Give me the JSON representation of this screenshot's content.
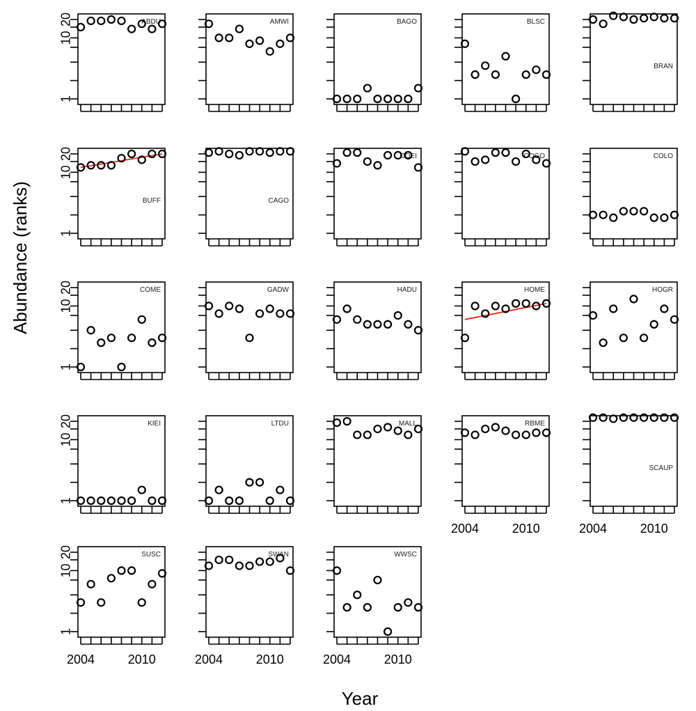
{
  "chart_data": {
    "type": "scatter",
    "xlabel": "Year",
    "ylabel": "Abundance (ranks)",
    "x": [
      2004,
      2005,
      2006,
      2007,
      2008,
      2009,
      2010,
      2011,
      2012
    ],
    "x_ticks": [
      2004,
      2010
    ],
    "y_ticks": [
      1,
      10,
      20
    ],
    "y_scale": "log",
    "xlim": [
      2004,
      2012
    ],
    "ylim": [
      1,
      25
    ],
    "grid": false,
    "legend": "none",
    "trend_color": "#e8291c",
    "panels": [
      {
        "name": "ABDU",
        "values": [
          15,
          19,
          19,
          20,
          19,
          14,
          17,
          14,
          17
        ]
      },
      {
        "name": "AMWI",
        "values": [
          17,
          10,
          10,
          14,
          8,
          9,
          6,
          8,
          10
        ]
      },
      {
        "name": "BAGO",
        "values": [
          1,
          1,
          1,
          1.5,
          1,
          1,
          1,
          1,
          1.5
        ]
      },
      {
        "name": "BLSC",
        "values": [
          8,
          2.5,
          3.5,
          2.5,
          5,
          1,
          2.5,
          3,
          2.5
        ]
      },
      {
        "name": "BRAN",
        "values": [
          20,
          17,
          23,
          22,
          20,
          21,
          22,
          21,
          21
        ]
      },
      {
        "name": "BUFF",
        "values": [
          12,
          13,
          13,
          13,
          17,
          20,
          16,
          20,
          20
        ],
        "trend": [
          12,
          20
        ]
      },
      {
        "name": "CAGO",
        "values": [
          21,
          22,
          20,
          19,
          22,
          22,
          21,
          22,
          22
        ]
      },
      {
        "name": "COEI",
        "values": [
          14,
          21,
          21,
          15,
          13,
          19,
          19,
          19,
          12
        ]
      },
      {
        "name": "COGO",
        "values": [
          22,
          15,
          16,
          21,
          21,
          15,
          20,
          16,
          14
        ]
      },
      {
        "name": "COLO",
        "values": [
          2,
          2,
          1.8,
          2.3,
          2.3,
          2.3,
          1.8,
          1.8,
          2
        ]
      },
      {
        "name": "COME",
        "values": [
          1,
          4,
          2.5,
          3,
          1,
          3,
          6,
          2.5,
          3
        ]
      },
      {
        "name": "GADW",
        "values": [
          10,
          7.5,
          10,
          9,
          3,
          7.5,
          9,
          7.5,
          7.5
        ]
      },
      {
        "name": "HADU",
        "values": [
          6,
          9,
          6,
          5,
          5,
          5,
          7,
          5,
          4
        ]
      },
      {
        "name": "HOME",
        "values": [
          3,
          10,
          7.5,
          10,
          9,
          11,
          11,
          10,
          11
        ],
        "trend": [
          6,
          11
        ]
      },
      {
        "name": "HOGR",
        "values": [
          7,
          2.5,
          9,
          3,
          13,
          3,
          5,
          9,
          6
        ]
      },
      {
        "name": "KIEI",
        "values": [
          1,
          1,
          1,
          1,
          1,
          1,
          1.5,
          1,
          1
        ]
      },
      {
        "name": "LTDU",
        "values": [
          1,
          1.5,
          1,
          1,
          2,
          2,
          1,
          1.5,
          1
        ]
      },
      {
        "name": "MALL",
        "values": [
          19,
          20,
          12,
          12,
          15,
          16,
          14,
          12,
          15
        ]
      },
      {
        "name": "RBME",
        "values": [
          13,
          12,
          15,
          16,
          14,
          12,
          12,
          13,
          13
        ]
      },
      {
        "name": "SCAUP",
        "values": [
          23,
          23,
          22,
          23,
          23,
          23,
          23,
          23,
          23
        ]
      },
      {
        "name": "SUSC",
        "values": [
          3,
          6,
          3,
          7.5,
          10,
          10,
          3,
          6,
          9
        ]
      },
      {
        "name": "SWAN",
        "values": [
          12,
          15,
          15,
          12,
          12,
          14,
          14,
          16,
          10
        ]
      },
      {
        "name": "WWSC",
        "values": [
          10,
          2.5,
          4,
          2.5,
          7,
          1,
          2.5,
          3,
          2.5
        ]
      }
    ]
  }
}
